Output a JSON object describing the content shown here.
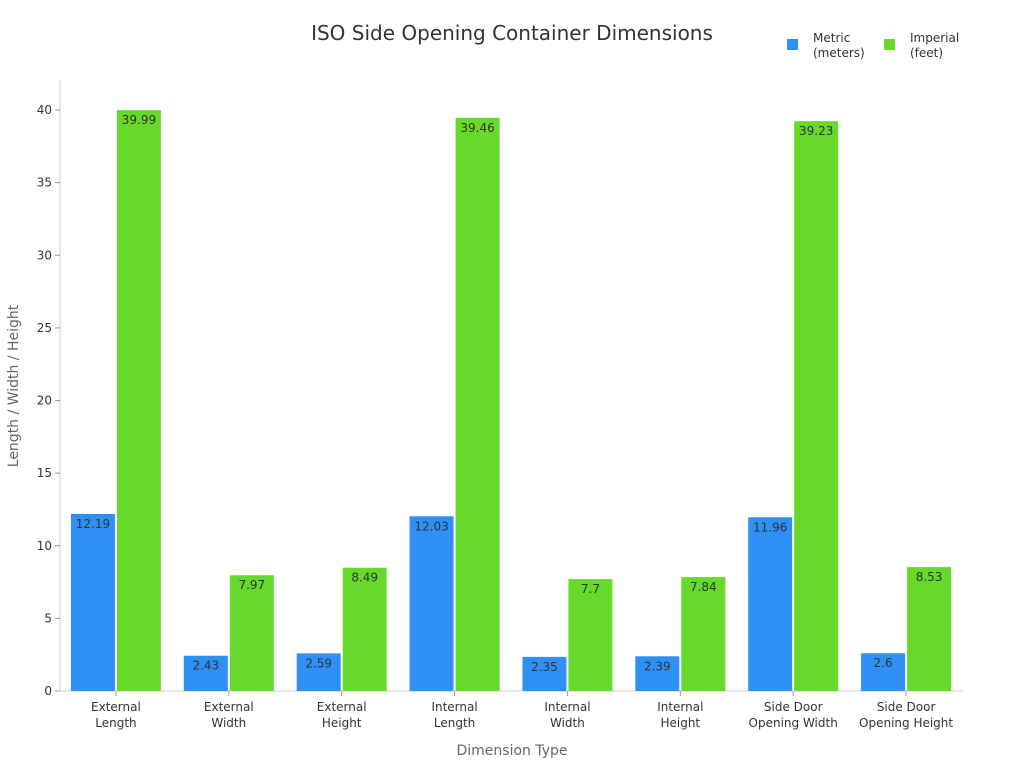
{
  "chart_data": {
    "type": "bar",
    "title": "ISO Side Opening Container Dimensions",
    "xlabel": "Dimension Type",
    "ylabel": "Length / Width / Height",
    "ylim": [
      0,
      40
    ],
    "yticks": [
      0,
      5,
      10,
      15,
      20,
      25,
      30,
      35,
      40
    ],
    "grid": false,
    "legend_position": "top-right",
    "categories": [
      [
        "External",
        "Length"
      ],
      [
        "External",
        "Width"
      ],
      [
        "External",
        "Height"
      ],
      [
        "Internal",
        "Length"
      ],
      [
        "Internal",
        "Width"
      ],
      [
        "Internal",
        "Height"
      ],
      [
        "Side Door",
        "Opening Width"
      ],
      [
        "Side Door",
        "Opening Height"
      ]
    ],
    "series": [
      {
        "name": [
          "Metric",
          "(meters)"
        ],
        "color": "#2E90F5",
        "values": [
          12.19,
          2.43,
          2.59,
          12.03,
          2.35,
          2.39,
          11.96,
          2.6
        ]
      },
      {
        "name": [
          "Imperial",
          "(feet)"
        ],
        "color": "#66D92A",
        "values": [
          39.99,
          7.97,
          8.49,
          39.46,
          7.7,
          7.84,
          39.23,
          8.53
        ]
      }
    ]
  }
}
